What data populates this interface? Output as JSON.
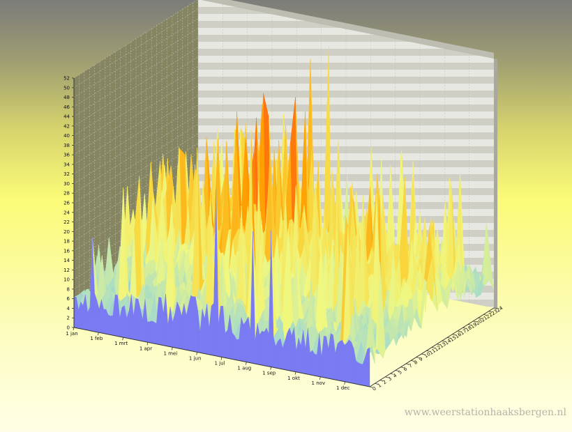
{
  "watermark": "www.weerstationhaaksbergen.nl",
  "chart_data": {
    "type": "surface3d",
    "title": "",
    "xlabel": "",
    "ylabel": "",
    "zlabel": "",
    "x_tick_labels": [
      "1 jan",
      "1 feb",
      "1 mrt",
      "1 apr",
      "1 mei",
      "1 jun",
      "1 jul",
      "1 aug",
      "1 sep",
      "1 okt",
      "1 nov",
      "1 dec"
    ],
    "y_tick_labels": [
      "0",
      "1",
      "2",
      "3",
      "4",
      "5",
      "6",
      "7",
      "8",
      "9",
      "10",
      "11",
      "12",
      "13",
      "14",
      "15",
      "16",
      "17",
      "18",
      "19",
      "20",
      "21",
      "22",
      "23",
      "24"
    ],
    "z_tick_labels": [
      "0",
      "2",
      "4",
      "6",
      "8",
      "10",
      "12",
      "14",
      "16",
      "18",
      "20",
      "22",
      "24",
      "26",
      "28",
      "30",
      "32",
      "34",
      "36",
      "38",
      "40",
      "42",
      "44",
      "46",
      "48",
      "50",
      "52"
    ],
    "xlim": [
      "1 jan",
      "31 dec"
    ],
    "ylim": [
      0,
      24
    ],
    "zlim": [
      0,
      52
    ],
    "grid": true,
    "colormap": [
      "#8080ff",
      "#a8dcc8",
      "#f0f880",
      "#f8d840",
      "#ff9e00",
      "#ff4020",
      "#ee1010",
      "#b020c0"
    ],
    "monthly_profile": [
      {
        "month": "1 jan",
        "base": 8,
        "peak": 24
      },
      {
        "month": "1 feb",
        "base": 9,
        "peak": 30
      },
      {
        "month": "1 mrt",
        "base": 10,
        "peak": 34
      },
      {
        "month": "1 apr",
        "base": 12,
        "peak": 36
      },
      {
        "month": "1 mei",
        "base": 14,
        "peak": 44
      },
      {
        "month": "1 jun",
        "base": 13,
        "peak": 52
      },
      {
        "month": "1 jul",
        "base": 12,
        "peak": 40
      },
      {
        "month": "1 aug",
        "base": 11,
        "peak": 32
      },
      {
        "month": "1 sep",
        "base": 10,
        "peak": 30
      },
      {
        "month": "1 okt",
        "base": 11,
        "peak": 36
      },
      {
        "month": "1 nov",
        "base": 10,
        "peak": 34
      },
      {
        "month": "1 dec",
        "base": 9,
        "peak": 28
      }
    ]
  }
}
